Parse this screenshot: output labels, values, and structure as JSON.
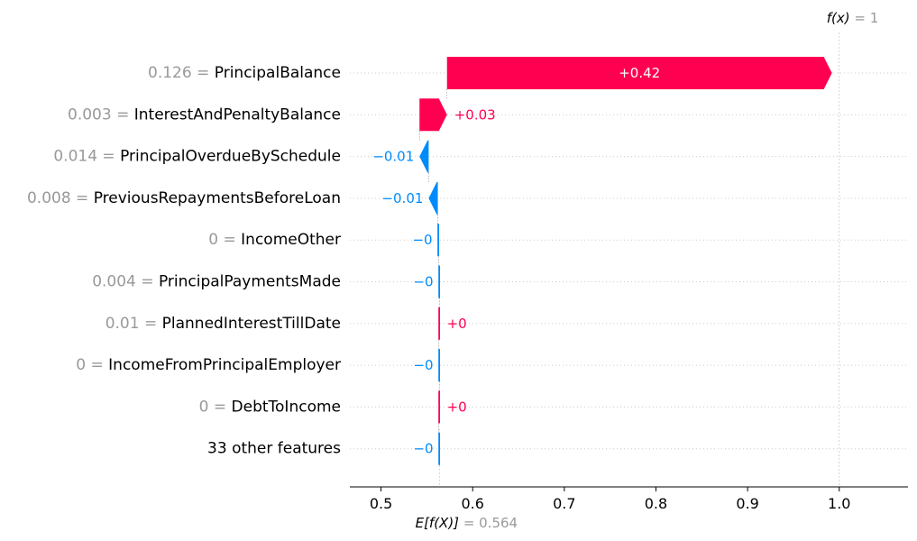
{
  "chart_data": {
    "type": "waterfall",
    "features": [
      {
        "value": "0.126",
        "name": "PrincipalBalance",
        "contribution": 0.42,
        "label": "+0.42"
      },
      {
        "value": "0.003",
        "name": "InterestAndPenaltyBalance",
        "contribution": 0.03,
        "label": "+0.03"
      },
      {
        "value": "0.014",
        "name": "PrincipalOverdueBySchedule",
        "contribution": -0.01,
        "label": "−0.01"
      },
      {
        "value": "0.008",
        "name": "PreviousRepaymentsBeforeLoan",
        "contribution": -0.01,
        "label": "−0.01"
      },
      {
        "value": "0",
        "name": "IncomeOther",
        "contribution": -0.001,
        "label": "−0"
      },
      {
        "value": "0.004",
        "name": "PrincipalPaymentsMade",
        "contribution": -0.001,
        "label": "−0"
      },
      {
        "value": "0.01",
        "name": "PlannedInterestTillDate",
        "contribution": 0.001,
        "label": "+0"
      },
      {
        "value": "0",
        "name": "IncomeFromPrincipalEmployer",
        "contribution": -0.001,
        "label": "−0"
      },
      {
        "value": "0",
        "name": "DebtToIncome",
        "contribution": 0.001,
        "label": "+0"
      },
      {
        "value": "",
        "name": "33 other features",
        "contribution": -0.001,
        "label": "−0"
      }
    ],
    "base_value": 0.564,
    "base_label": "E[f(X)]",
    "base_value_label": "= 0.564",
    "output_value": 1,
    "output_label": "f(x)",
    "output_value_label": "= 1",
    "xlim": [
      0.466,
      1.075
    ],
    "xticks": [
      0.5,
      0.6,
      0.7,
      0.8,
      0.9,
      1.0
    ],
    "xtick_labels": [
      "0.5",
      "0.6",
      "0.7",
      "0.8",
      "0.9",
      "1.0"
    ],
    "colors": {
      "positive": "#ff0051",
      "negative": "#008bfb",
      "label_value": "#999999",
      "label_name": "#000000",
      "grid": "#cccccc"
    }
  }
}
